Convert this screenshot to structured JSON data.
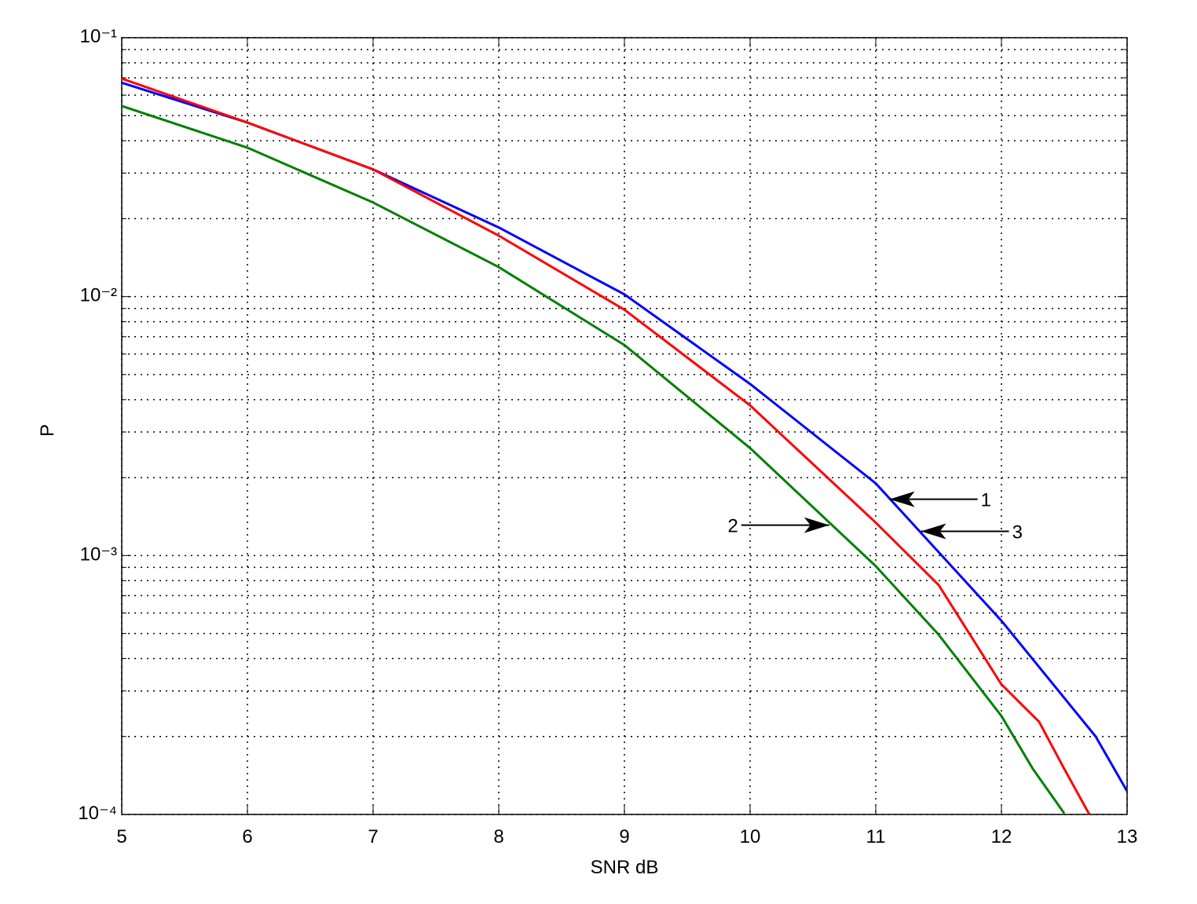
{
  "chart_data": {
    "type": "line",
    "x_label": "SNR dB",
    "y_label": "P",
    "xlim": [
      5,
      13
    ],
    "xticks": [
      5,
      6,
      7,
      8,
      9,
      10,
      11,
      12,
      13
    ],
    "ylim": [
      0.0001,
      0.1
    ],
    "log_y": true,
    "grid": true,
    "minor_grid": true,
    "yticks": [
      {
        "value": 0.0001,
        "label": "10⁻⁴"
      },
      {
        "value": 0.001,
        "label": "10⁻³"
      },
      {
        "value": 0.01,
        "label": "10⁻²"
      },
      {
        "value": 0.1,
        "label": "10⁻¹"
      }
    ],
    "series": [
      {
        "color": "#0000ff",
        "x": [
          5,
          6,
          7,
          8,
          9,
          10,
          11,
          12,
          12.75,
          13
        ],
        "values": [
          0.067,
          0.047,
          0.031,
          0.0185,
          0.0102,
          0.0046,
          0.0019,
          0.00056,
          0.0002,
          0.000123
        ]
      },
      {
        "color": "#ff0000",
        "x": [
          5,
          6,
          7,
          8,
          9,
          10,
          11,
          11.5,
          12,
          12.3,
          12.5,
          12.7
        ],
        "values": [
          0.0695,
          0.047,
          0.031,
          0.0172,
          0.0089,
          0.0038,
          0.00134,
          0.00077,
          0.000318,
          0.000228,
          0.00015,
          0.0001
        ]
      },
      {
        "color": "#008000",
        "x": [
          5,
          6,
          7,
          8,
          9,
          10,
          11,
          11.5,
          12,
          12.25,
          12.5
        ],
        "values": [
          0.0545,
          0.0376,
          0.0231,
          0.013,
          0.0065,
          0.0026,
          0.00091,
          0.000495,
          0.00024,
          0.00015,
          0.000101
        ]
      }
    ],
    "annotations": [
      {
        "text": "1",
        "x": 11.11,
        "y": 0.00165,
        "side": "right"
      },
      {
        "text": "3",
        "x": 11.36,
        "y": 0.00124,
        "side": "right"
      },
      {
        "text": "2",
        "x": 10.63,
        "y": 0.00131,
        "side": "left"
      }
    ]
  }
}
